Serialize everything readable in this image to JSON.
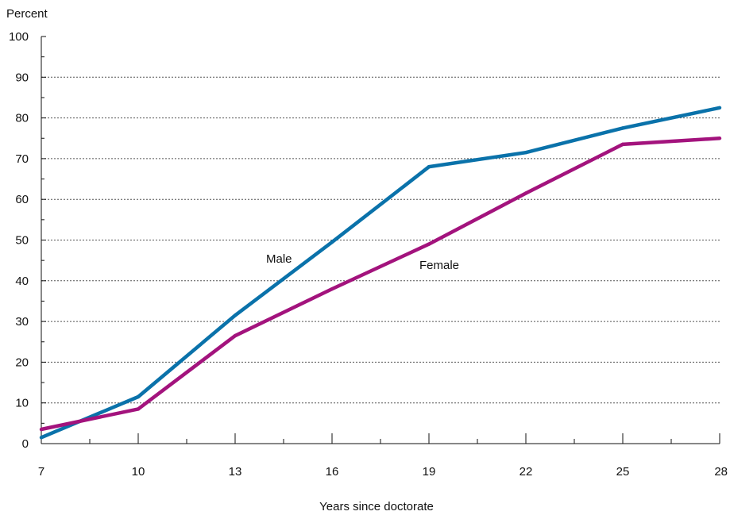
{
  "chart_data": {
    "type": "line",
    "ylabel": "Percent",
    "xlabel": "Years since doctorate",
    "xlim": [
      7,
      28
    ],
    "ylim": [
      0,
      100
    ],
    "x_ticks": [
      7,
      10,
      13,
      16,
      19,
      22,
      25,
      28
    ],
    "y_ticks": [
      0,
      10,
      20,
      30,
      40,
      50,
      60,
      70,
      80,
      90,
      100
    ],
    "grid": "horizontal-dotted",
    "x": [
      7,
      10,
      13,
      16,
      19,
      22,
      25,
      28
    ],
    "series": [
      {
        "name": "Male",
        "color": "#0a72aa",
        "values": [
          1.5,
          11.5,
          31.5,
          49.5,
          68,
          71.5,
          77.5,
          82.5
        ]
      },
      {
        "name": "Female",
        "color": "#a3137d",
        "values": [
          3.5,
          8.5,
          26.5,
          38,
          49,
          61.5,
          73.5,
          75
        ]
      }
    ]
  }
}
